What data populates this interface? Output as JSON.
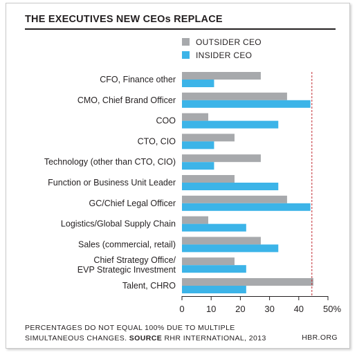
{
  "header": {
    "title": "THE EXECUTIVES NEW CEOs REPLACE"
  },
  "footer": {
    "note_line1": "PERCENTAGES DO NOT EQUAL 100% DUE TO MULTIPLE",
    "note_line2_prefix": "SIMULTANEOUS CHANGES.",
    "source_label": "SOURCE",
    "source_text": "RHR INTERNATIONAL, 2013",
    "brand": "HBR.ORG"
  },
  "colors": {
    "outsider": "#a7a9ac",
    "insider": "#3cb4e8",
    "reference_line": "#c0272d"
  },
  "chart_data": {
    "type": "bar",
    "orientation": "horizontal",
    "title": "THE EXECUTIVES NEW CEOs REPLACE",
    "categories": [
      [
        "CFO, Finance other"
      ],
      [
        "CMO, Chief Brand Officer"
      ],
      [
        "COO"
      ],
      [
        "CTO, CIO"
      ],
      [
        "Technology (other than CTO, CIO)"
      ],
      [
        "Function or Business Unit Leader"
      ],
      [
        "GC/Chief Legal Officer"
      ],
      [
        "Logistics/Global Supply Chain"
      ],
      [
        "Sales (commercial, retail)"
      ],
      [
        "Chief Strategy Office/",
        "EVP Strategic Investment"
      ],
      [
        "Talent, CHRO"
      ]
    ],
    "series": [
      {
        "name": "OUTSIDER CEO",
        "values": [
          27,
          36,
          9,
          18,
          27,
          18,
          36,
          9,
          27,
          18,
          45
        ]
      },
      {
        "name": "INSIDER CEO",
        "values": [
          11,
          44,
          33,
          11,
          11,
          33,
          44,
          22,
          33,
          22,
          22
        ]
      }
    ],
    "xlim": [
      0,
      50
    ],
    "xticks": [
      "0",
      "10",
      "20",
      "30",
      "40",
      "50%"
    ],
    "reference_line": 44.5,
    "legend_position": "top",
    "grid": false
  }
}
